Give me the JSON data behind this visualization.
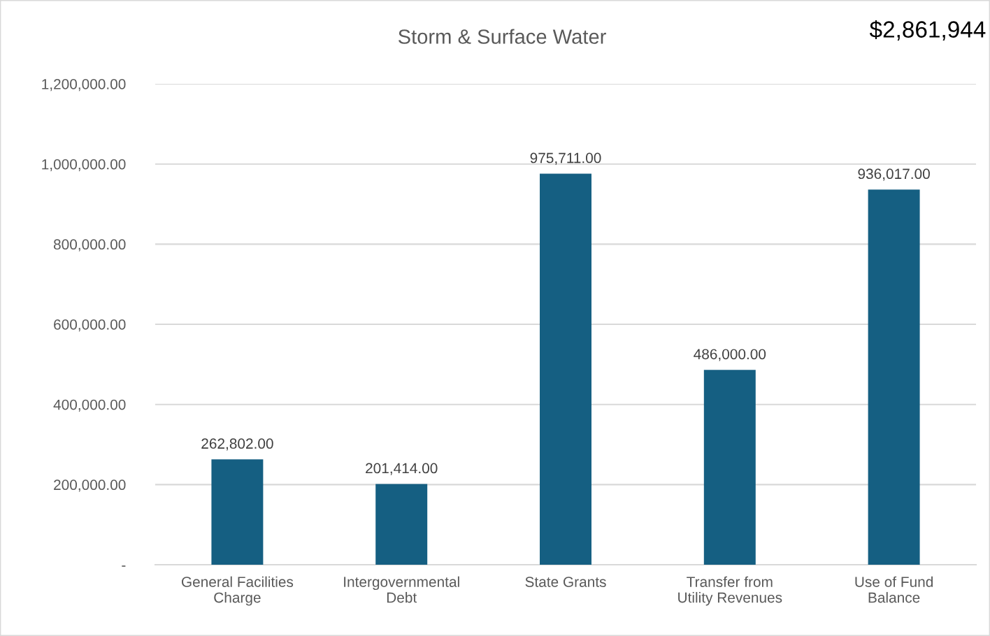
{
  "chart_data": {
    "type": "bar",
    "title": "Storm & Surface Water",
    "categories": [
      "General Facilities\nCharge",
      "Intergovernmental\nDebt",
      "State Grants",
      "Transfer from\nUtility Revenues",
      "Use of Fund\nBalance"
    ],
    "values": [
      262802,
      201414,
      975711,
      486000,
      936017
    ],
    "value_labels": [
      "262,802.00",
      "201,414.00",
      "975,711.00",
      "486,000.00",
      "936,017.00"
    ],
    "color": "#155f82",
    "ylim": [
      0,
      1200000
    ],
    "yticks": [
      {
        "value": 0,
        "label": "-"
      },
      {
        "value": 200000,
        "label": "200,000.00"
      },
      {
        "value": 400000,
        "label": "400,000.00"
      },
      {
        "value": 600000,
        "label": "600,000.00"
      },
      {
        "value": 800000,
        "label": "800,000.00"
      },
      {
        "value": 1000000,
        "label": "1,000,000.00"
      },
      {
        "value": 1200000,
        "label": "1,200,000.00"
      }
    ],
    "grid": "y",
    "annotations": [
      "$2,861,944"
    ]
  }
}
